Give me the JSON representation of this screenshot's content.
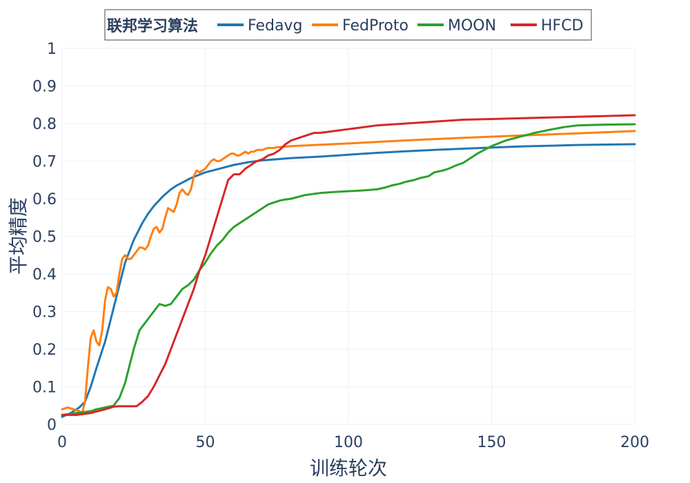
{
  "chart_data": {
    "type": "line",
    "title": "",
    "xlabel": "训练轮次",
    "ylabel": "平均精度",
    "xlim": [
      0,
      200
    ],
    "ylim": [
      0,
      1
    ],
    "xticks": [
      0,
      50,
      100,
      150,
      200
    ],
    "xtick_labels": [
      "0",
      "50",
      "100",
      "150",
      "200"
    ],
    "yticks": [
      0,
      0.1,
      0.2,
      0.3,
      0.4,
      0.5,
      0.6,
      0.7,
      0.8,
      0.9,
      1
    ],
    "ytick_labels": [
      "0",
      "0.1",
      "0.2",
      "0.3",
      "0.4",
      "0.5",
      "0.6",
      "0.7",
      "0.8",
      "0.9",
      "1"
    ],
    "grid": true,
    "legend": {
      "title": "联邦学习算法",
      "position": "top-center",
      "orientation": "horizontal"
    },
    "series": [
      {
        "name": "Fedavg",
        "color": "#1f77b4",
        "x": [
          0,
          3,
          6,
          8,
          10,
          12,
          15,
          18,
          20,
          22,
          25,
          28,
          30,
          32,
          35,
          38,
          40,
          45,
          50,
          55,
          60,
          65,
          70,
          75,
          80,
          90,
          100,
          110,
          120,
          130,
          140,
          150,
          160,
          170,
          180,
          190,
          200
        ],
        "y": [
          0.02,
          0.03,
          0.045,
          0.06,
          0.1,
          0.15,
          0.22,
          0.31,
          0.37,
          0.43,
          0.49,
          0.535,
          0.56,
          0.58,
          0.605,
          0.625,
          0.635,
          0.655,
          0.67,
          0.68,
          0.69,
          0.697,
          0.702,
          0.705,
          0.708,
          0.712,
          0.717,
          0.722,
          0.726,
          0.73,
          0.733,
          0.736,
          0.739,
          0.741,
          0.743,
          0.744,
          0.745
        ]
      },
      {
        "name": "FedProto",
        "color": "#ff7f0e",
        "x": [
          0,
          2,
          4,
          6,
          7,
          8,
          9,
          10,
          11,
          12,
          13,
          14,
          15,
          16,
          17,
          18,
          19,
          20,
          21,
          22,
          23,
          24,
          25,
          26,
          27,
          28,
          29,
          30,
          31,
          32,
          33,
          34,
          35,
          36,
          37,
          38,
          39,
          40,
          41,
          42,
          43,
          44,
          45,
          46,
          47,
          48,
          49,
          50,
          51,
          52,
          53,
          54,
          55,
          56,
          57,
          58,
          59,
          60,
          61,
          62,
          63,
          64,
          65,
          66,
          67,
          68,
          69,
          70,
          71,
          72,
          73,
          74,
          75,
          76,
          80,
          100,
          120,
          140,
          160,
          180,
          200
        ],
        "y": [
          0.04,
          0.045,
          0.04,
          0.035,
          0.03,
          0.06,
          0.15,
          0.23,
          0.25,
          0.22,
          0.21,
          0.25,
          0.33,
          0.365,
          0.36,
          0.34,
          0.35,
          0.4,
          0.44,
          0.45,
          0.44,
          0.44,
          0.45,
          0.46,
          0.47,
          0.47,
          0.465,
          0.475,
          0.5,
          0.52,
          0.525,
          0.51,
          0.52,
          0.55,
          0.575,
          0.57,
          0.565,
          0.585,
          0.615,
          0.625,
          0.615,
          0.61,
          0.625,
          0.66,
          0.675,
          0.67,
          0.675,
          0.68,
          0.69,
          0.7,
          0.705,
          0.7,
          0.7,
          0.705,
          0.71,
          0.715,
          0.72,
          0.72,
          0.715,
          0.715,
          0.72,
          0.725,
          0.72,
          0.725,
          0.725,
          0.73,
          0.73,
          0.73,
          0.733,
          0.735,
          0.735,
          0.735,
          0.737,
          0.737,
          0.74,
          0.747,
          0.755,
          0.762,
          0.768,
          0.774,
          0.78
        ]
      },
      {
        "name": "MOON",
        "color": "#2ca02c",
        "x": [
          0,
          5,
          10,
          12,
          15,
          18,
          20,
          22,
          25,
          27,
          30,
          32,
          34,
          36,
          38,
          40,
          42,
          44,
          46,
          48,
          50,
          52,
          54,
          56,
          58,
          60,
          62,
          64,
          66,
          68,
          70,
          72,
          74,
          76,
          78,
          80,
          85,
          90,
          95,
          100,
          105,
          110,
          113,
          115,
          118,
          120,
          123,
          125,
          128,
          130,
          133,
          135,
          138,
          140,
          145,
          150,
          155,
          160,
          165,
          170,
          175,
          180,
          190,
          200
        ],
        "y": [
          0.025,
          0.03,
          0.035,
          0.04,
          0.045,
          0.05,
          0.07,
          0.11,
          0.2,
          0.25,
          0.28,
          0.3,
          0.32,
          0.315,
          0.32,
          0.34,
          0.36,
          0.37,
          0.385,
          0.41,
          0.43,
          0.455,
          0.475,
          0.49,
          0.51,
          0.525,
          0.535,
          0.545,
          0.555,
          0.565,
          0.575,
          0.585,
          0.59,
          0.595,
          0.598,
          0.6,
          0.61,
          0.615,
          0.618,
          0.62,
          0.622,
          0.625,
          0.63,
          0.635,
          0.64,
          0.645,
          0.65,
          0.655,
          0.66,
          0.67,
          0.675,
          0.68,
          0.69,
          0.695,
          0.72,
          0.74,
          0.755,
          0.765,
          0.775,
          0.783,
          0.79,
          0.795,
          0.797,
          0.798
        ]
      },
      {
        "name": "HFCD",
        "color": "#d62728",
        "x": [
          0,
          5,
          10,
          15,
          18,
          20,
          22,
          24,
          26,
          28,
          30,
          32,
          34,
          36,
          38,
          40,
          42,
          44,
          46,
          48,
          50,
          52,
          54,
          56,
          58,
          60,
          62,
          64,
          66,
          68,
          70,
          72,
          74,
          76,
          78,
          80,
          82,
          84,
          86,
          88,
          90,
          95,
          100,
          110,
          120,
          130,
          140,
          150,
          160,
          170,
          180,
          190,
          200
        ],
        "y": [
          0.025,
          0.025,
          0.03,
          0.04,
          0.047,
          0.048,
          0.048,
          0.048,
          0.048,
          0.06,
          0.075,
          0.1,
          0.13,
          0.16,
          0.2,
          0.24,
          0.28,
          0.32,
          0.36,
          0.41,
          0.45,
          0.5,
          0.55,
          0.6,
          0.65,
          0.665,
          0.665,
          0.68,
          0.69,
          0.7,
          0.705,
          0.715,
          0.72,
          0.73,
          0.745,
          0.755,
          0.76,
          0.765,
          0.77,
          0.775,
          0.775,
          0.78,
          0.785,
          0.795,
          0.8,
          0.805,
          0.81,
          0.812,
          0.814,
          0.816,
          0.818,
          0.82,
          0.822
        ]
      }
    ]
  }
}
